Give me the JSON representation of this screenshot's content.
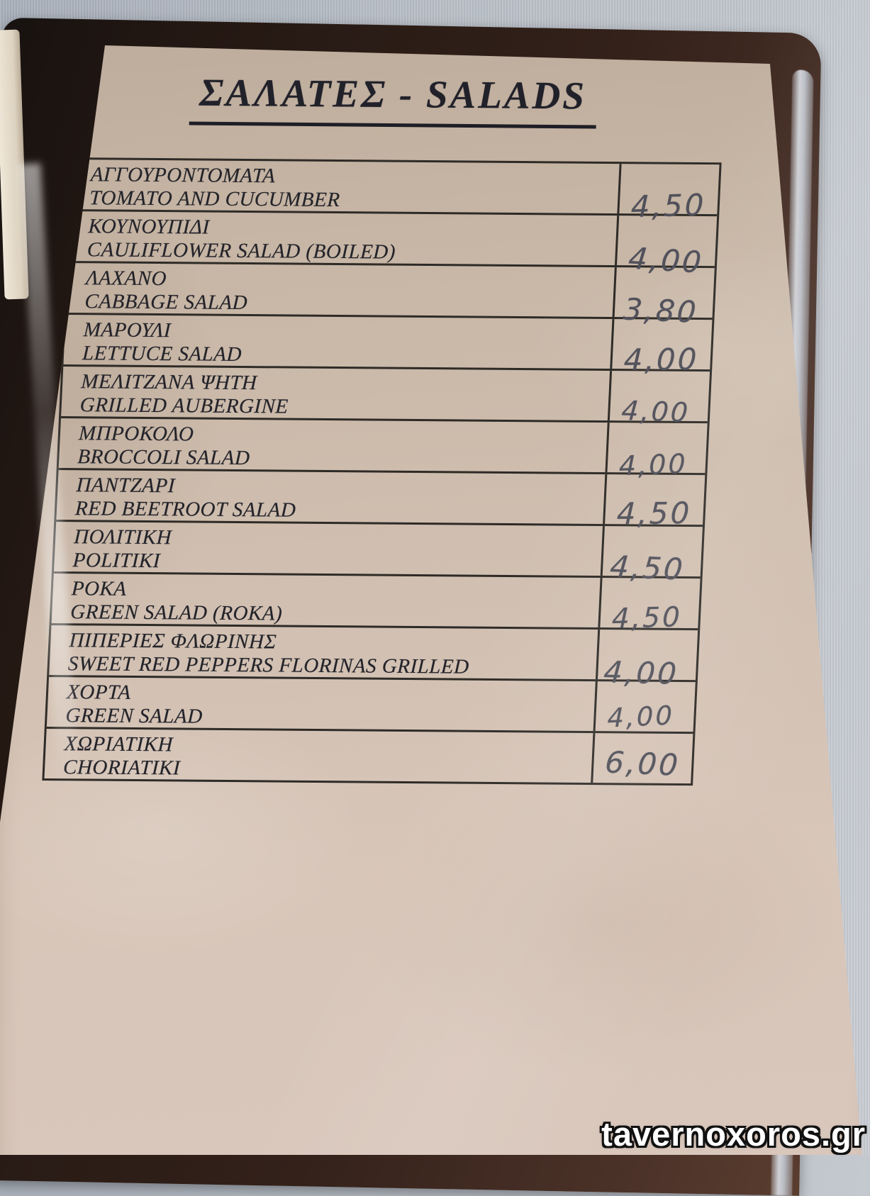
{
  "header": {
    "title": "ΣΑΛΑΤΕΣ - SALADS"
  },
  "menu": {
    "items": [
      {
        "greek": "ΑΓΓΟΥΡΟΝΤΟΜΑΤΑ",
        "english": "TOMATO AND CUCUMBER",
        "price": "4,50"
      },
      {
        "greek": "ΚΟΥΝΟΥΠΙΔΙ",
        "english": "CAULIFLOWER SALAD (BOILED)",
        "price": "4,00"
      },
      {
        "greek": "ΛΑΧΑΝΟ",
        "english": "CABBAGE SALAD",
        "price": "3,80"
      },
      {
        "greek": "ΜΑΡΟΥΛΙ",
        "english": "LETTUCE SALAD",
        "price": "4,00"
      },
      {
        "greek": "ΜΕΛΙΤΖΑΝΑ ΨΗΤΗ",
        "english": "GRILLED AUBERGINE",
        "price": "4,00"
      },
      {
        "greek": "ΜΠΡΟΚΟΛΟ",
        "english": "BROCCOLI SALAD",
        "price": "4,00"
      },
      {
        "greek": "ΠΑΝΤΖΑΡΙ",
        "english": "RED BEETROOT SALAD",
        "price": "4,50"
      },
      {
        "greek": "ΠΟΛΙΤΙΚΗ",
        "english": "POLITIKI",
        "price": "4,50"
      },
      {
        "greek": "ΡΟΚΑ",
        "english": "GREEN SALAD (ROKA)",
        "price": "4,50"
      },
      {
        "greek": "ΠΙΠΕΡΙΕΣ ΦΛΩΡΙΝΗΣ",
        "english": "SWEET RED PEPPERS FLORINAS GRILLED",
        "price": "4,00"
      },
      {
        "greek": "ΧΟΡΤΑ",
        "english": "GREEN SALAD",
        "price": "4,00"
      },
      {
        "greek": "ΧΩΡΙΑΤΙΚΗ",
        "english": "CHORIATIKI",
        "price": "6,00"
      }
    ]
  },
  "watermark": {
    "text": "tavernoxoros.gr"
  },
  "colors": {
    "paper": "#d0bfb0",
    "ink": "#23232a",
    "handwriting_ink": "#50505a",
    "table_line": "#2e2b27",
    "cover_leather": "#33211a",
    "tablecloth": "#b8bec6",
    "sleeve_edge": "#cfd1d6",
    "watermark_fill": "#ffffff",
    "watermark_outline": "#111111"
  }
}
